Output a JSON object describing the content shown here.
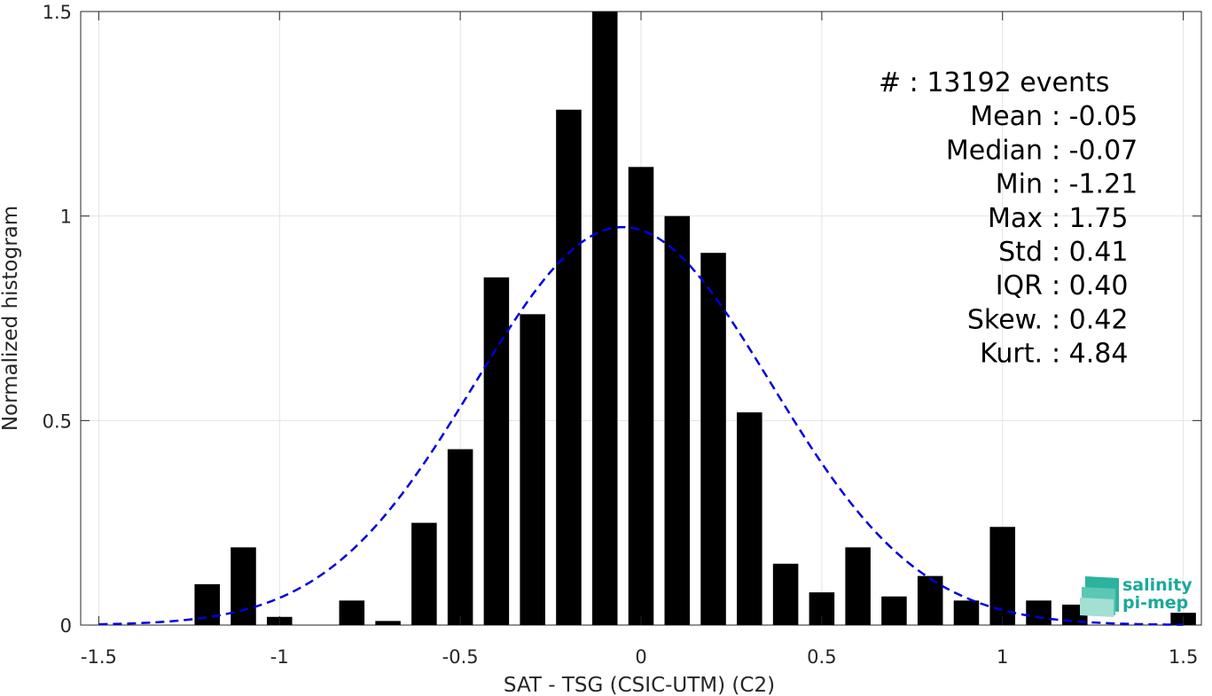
{
  "chart_data": {
    "type": "bar",
    "xlabel": "SAT - TSG (CSIC-UTM) (C2)",
    "ylabel": "Normalized histogram",
    "xlim": [
      -1.55,
      1.55
    ],
    "ylim": [
      0,
      1.5
    ],
    "xticks": [
      -1.5,
      -1,
      -0.5,
      0,
      0.5,
      1,
      1.5
    ],
    "xtick_labels": [
      "-1.5",
      "-1",
      "-0.5",
      "0",
      "0.5",
      "1",
      "1.5"
    ],
    "yticks": [
      0,
      0.5,
      1,
      1.5
    ],
    "ytick_labels": [
      "0",
      "0.5",
      "1",
      "1.5"
    ],
    "grid": true,
    "bar_width": 0.07,
    "bar_color": "#000000",
    "bins": [
      {
        "x": -1.2,
        "value": 0.1
      },
      {
        "x": -1.1,
        "value": 0.19
      },
      {
        "x": -1.0,
        "value": 0.02
      },
      {
        "x": -0.8,
        "value": 0.06
      },
      {
        "x": -0.7,
        "value": 0.01
      },
      {
        "x": -0.6,
        "value": 0.25
      },
      {
        "x": -0.5,
        "value": 0.43
      },
      {
        "x": -0.4,
        "value": 0.85
      },
      {
        "x": -0.3,
        "value": 0.76
      },
      {
        "x": -0.2,
        "value": 1.26
      },
      {
        "x": -0.1,
        "value": 1.5
      },
      {
        "x": 0.0,
        "value": 1.12
      },
      {
        "x": 0.1,
        "value": 1.0
      },
      {
        "x": 0.2,
        "value": 0.91
      },
      {
        "x": 0.3,
        "value": 0.52
      },
      {
        "x": 0.4,
        "value": 0.15
      },
      {
        "x": 0.5,
        "value": 0.08
      },
      {
        "x": 0.6,
        "value": 0.19
      },
      {
        "x": 0.7,
        "value": 0.07
      },
      {
        "x": 0.8,
        "value": 0.12
      },
      {
        "x": 0.9,
        "value": 0.06
      },
      {
        "x": 1.0,
        "value": 0.24
      },
      {
        "x": 1.1,
        "value": 0.06
      },
      {
        "x": 1.2,
        "value": 0.05
      },
      {
        "x": 1.5,
        "value": 0.03
      }
    ],
    "fit_curve": {
      "type": "gaussian",
      "mean": -0.05,
      "std": 0.41,
      "color": "#0000dd",
      "style": "dashed",
      "x_range": [
        -1.5,
        1.5
      ]
    },
    "stats_lines": [
      "#  : 13192 events",
      "Mean : -0.05",
      "Median : -0.07",
      "Min : -1.21",
      "Max : 1.75",
      "Std : 0.41",
      "IQR : 0.40",
      "Skew. : 0.42",
      "Kurt. : 4.84"
    ]
  },
  "logo": {
    "line1": "salinity",
    "line2": "pi-mep",
    "color": "#1aa99b"
  }
}
